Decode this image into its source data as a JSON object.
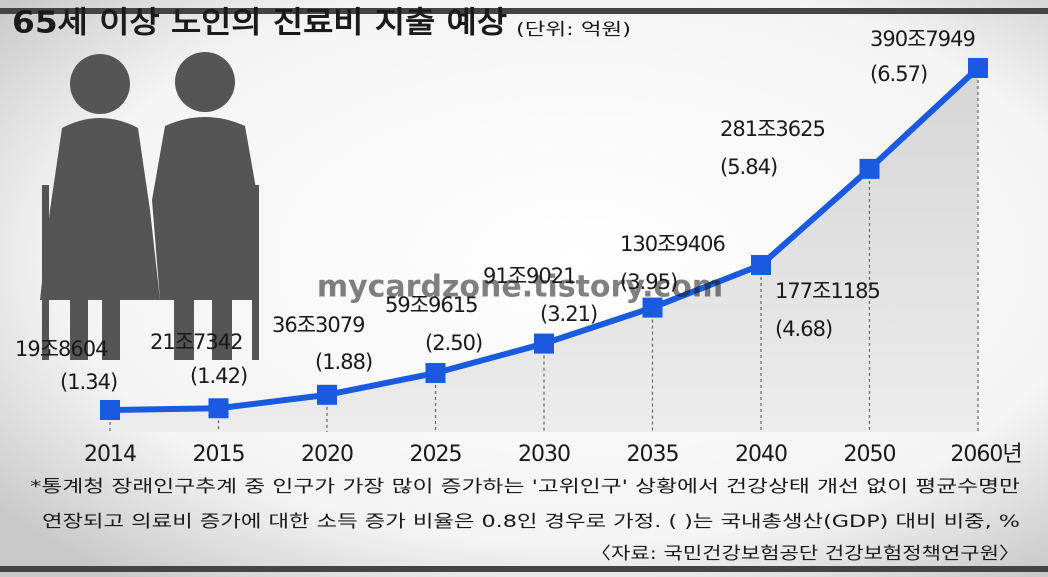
{
  "chart_data": {
    "type": "line",
    "title": "65세 이상 노인의 진료비 지출 예상",
    "subtitle": "(단위: 억원)",
    "categories": [
      "2014",
      "2015",
      "2020",
      "2025",
      "2030",
      "2035",
      "2040",
      "2050",
      "2060년"
    ],
    "series": [
      {
        "color": "#1a5ae0",
        "values": [
          198604,
          217342,
          363079,
          599615,
          919021,
          1309406,
          1771185,
          2813625,
          3907949
        ],
        "value_labels": [
          "19조8604",
          "21조7342",
          "36조3079",
          "59조9615",
          "91조9021",
          "130조9406",
          "177조1185",
          "281조3625",
          "390조7949"
        ]
      }
    ],
    "gdp_share": {
      "values": [
        1.34,
        1.42,
        1.88,
        2.5,
        3.21,
        3.95,
        4.68,
        5.84,
        6.57
      ],
      "value_labels": [
        "(1.34)",
        "(1.42)",
        "(1.88)",
        "(2.50)",
        "(3.21)",
        "(3.95)",
        "(4.68)",
        "(5.84)",
        "(6.57)"
      ]
    },
    "notes": [
      "*통계청 장래인구추계 중 인구가 가장 많이 증가하는 '고위인구' 상황에서 건강상태 개선 없이 평균수명만",
      "연장되고 의료비 증가에 대한 소득 증가 비율은 0.8인 경우로 가정. ( )는 국내총생산(GDP) 대비 비중, %"
    ],
    "source": "〈자료: 국민건강보험공단 건강보험정책연구원〉",
    "watermark": "mycardzone.tistory.com"
  }
}
